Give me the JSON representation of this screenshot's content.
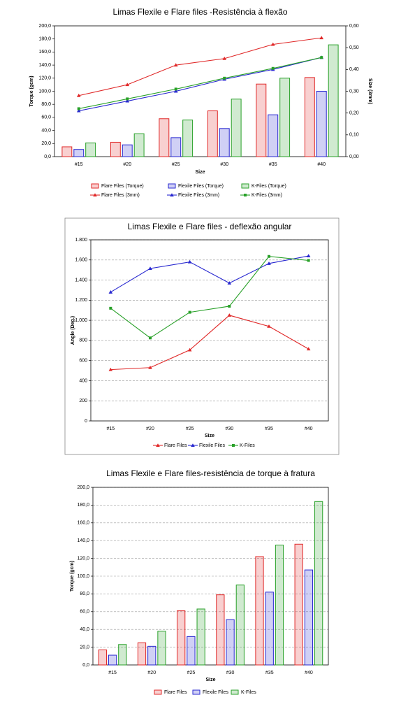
{
  "chart_data": [
    {
      "type": "bar",
      "title": "Limas Flexile e Flare files -Resistência à flexão",
      "x_label": "Size",
      "y_label": "Torque (gcm)",
      "y2_label": "Size (3mm)",
      "categories": [
        "#15",
        "#20",
        "#25",
        "#30",
        "#35",
        "#40"
      ],
      "ylim": [
        0,
        200
      ],
      "yticks": [
        {
          "value": 0,
          "label": "0,0"
        },
        {
          "value": 20,
          "label": "20,0"
        },
        {
          "value": 40,
          "label": "40,0"
        },
        {
          "value": 60,
          "label": "60,0"
        },
        {
          "value": 80,
          "label": "80,0"
        },
        {
          "value": 100,
          "label": "100,0"
        },
        {
          "value": 120,
          "label": "120,0"
        },
        {
          "value": 140,
          "label": "140,0"
        },
        {
          "value": 160,
          "label": "160,0"
        },
        {
          "value": 180,
          "label": "180,0"
        },
        {
          "value": 200,
          "label": "200,0"
        }
      ],
      "y2lim": [
        0,
        0.6
      ],
      "y2ticks": [
        {
          "value": 0,
          "label": "0,00"
        },
        {
          "value": 0.1,
          "label": "0,10"
        },
        {
          "value": 0.2,
          "label": "0,20"
        },
        {
          "value": 0.3,
          "label": "0,30"
        },
        {
          "value": 0.4,
          "label": "0,40"
        },
        {
          "value": 0.5,
          "label": "0,50"
        },
        {
          "value": 0.6,
          "label": "0,60"
        }
      ],
      "grid": false,
      "series": [
        {
          "name": "Flare Files (Torque)",
          "color": "#e02828",
          "type": "bar",
          "values": [
            15,
            22,
            58,
            70,
            111,
            121
          ]
        },
        {
          "name": "Flexile Files (Torque)",
          "color": "#2828d0",
          "type": "bar",
          "values": [
            11,
            18,
            29,
            43,
            64,
            100
          ]
        },
        {
          "name": "K-Files (Torque)",
          "color": "#28a028",
          "type": "bar",
          "values": [
            21,
            35,
            56,
            88,
            120,
            171
          ]
        },
        {
          "name": "Flare Files (3mm)",
          "color": "#e02828",
          "type": "line",
          "axis": "y2",
          "values": [
            0.28,
            0.33,
            0.42,
            0.45,
            0.515,
            0.545
          ]
        },
        {
          "name": "Flexile Files (3mm)",
          "color": "#2828d0",
          "type": "line",
          "axis": "y2",
          "values": [
            0.21,
            0.255,
            0.3,
            0.355,
            0.4,
            0.455
          ]
        },
        {
          "name": "K-Files (3mm)",
          "color": "#28a028",
          "type": "line",
          "axis": "y2",
          "values": [
            0.22,
            0.265,
            0.31,
            0.36,
            0.405,
            0.455
          ]
        }
      ]
    },
    {
      "type": "line",
      "title": "Limas Flexile e Flare files - deflexão angular",
      "x_label": "Size",
      "y_label": "Angle (Deg.)",
      "categories": [
        "#15",
        "#20",
        "#25",
        "#30",
        "#35",
        "#40"
      ],
      "ylim": [
        0,
        1800
      ],
      "yticks": [
        0,
        200,
        400,
        600,
        800,
        {
          "value": 1000,
          "label": "1.000"
        },
        {
          "value": 1200,
          "label": "1.200"
        },
        {
          "value": 1400,
          "label": "1.400"
        },
        {
          "value": 1600,
          "label": "1.600"
        },
        {
          "value": 1800,
          "label": "1.800"
        }
      ],
      "grid": true,
      "series": [
        {
          "name": "Flare Files",
          "color": "#e02828",
          "type": "line",
          "values": [
            510,
            530,
            705,
            1050,
            940,
            715
          ]
        },
        {
          "name": "Flexile Files",
          "color": "#2828d0",
          "type": "line",
          "values": [
            1280,
            1515,
            1580,
            1370,
            1565,
            1640
          ]
        },
        {
          "name": "K-Files",
          "color": "#28a028",
          "type": "line",
          "values": [
            1120,
            825,
            1080,
            1140,
            1635,
            1595
          ]
        }
      ]
    },
    {
      "type": "bar",
      "title": "Limas Flexile e Flare files-resistência de torque à fratura",
      "x_label": "Size",
      "y_label": "Torque (gcm)",
      "categories": [
        "#15",
        "#20",
        "#25",
        "#30",
        "#35",
        "#40"
      ],
      "ylim": [
        0,
        200
      ],
      "yticks": [
        {
          "value": 0,
          "label": "0,0"
        },
        {
          "value": 20,
          "label": "20,0"
        },
        {
          "value": 40,
          "label": "40,0"
        },
        {
          "value": 60,
          "label": "60,0"
        },
        {
          "value": 80,
          "label": "80,0"
        },
        {
          "value": 100,
          "label": "100,0"
        },
        {
          "value": 120,
          "label": "120,0"
        },
        {
          "value": 140,
          "label": "140,0"
        },
        {
          "value": 160,
          "label": "160,0"
        },
        {
          "value": 180,
          "label": "180,0"
        },
        {
          "value": 200,
          "label": "200,0"
        }
      ],
      "grid": true,
      "series": [
        {
          "name": "Flare Files",
          "color": "#e02828",
          "type": "bar",
          "values": [
            17,
            25,
            61,
            79,
            122,
            136
          ]
        },
        {
          "name": "Flexile Files",
          "color": "#2828d0",
          "type": "bar",
          "values": [
            11,
            21,
            32,
            51,
            82,
            107
          ]
        },
        {
          "name": "K-Files",
          "color": "#28a028",
          "type": "bar",
          "values": [
            23,
            38,
            63,
            90,
            135,
            184
          ]
        }
      ]
    }
  ]
}
